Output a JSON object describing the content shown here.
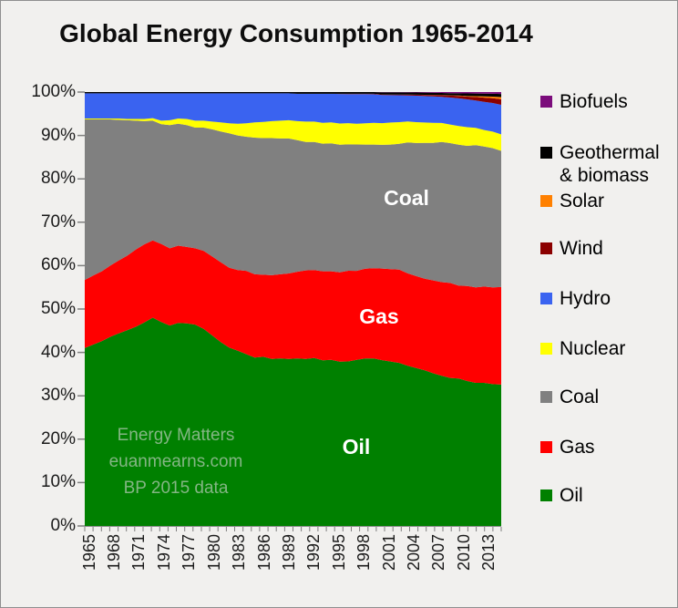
{
  "window": {
    "title": "Global Energy Consumption 1965-2014"
  },
  "palette": {
    "background": "#F1F0EE",
    "title_text": "#0d0d0d",
    "axis_text": "#1a1a1a",
    "tick_color": "#7f7f7f",
    "watermark_green": "#84B684",
    "plot_label_white": "#ffffff"
  },
  "chart_data": {
    "type": "area",
    "stacked": true,
    "unit": "percent of total",
    "title": "Global Energy Consumption 1965-2014",
    "grid": false,
    "ylim": [
      0,
      100
    ],
    "y_tick_labels": [
      "100%",
      "90%",
      "80%",
      "70%",
      "60%",
      "50%",
      "40%",
      "30%",
      "20%",
      "10%",
      "0%"
    ],
    "x_tick_labels": [
      "1965",
      "1968",
      "1971",
      "1974",
      "1977",
      "1980",
      "1983",
      "1986",
      "1989",
      "1992",
      "1995",
      "1998",
      "2001",
      "2004",
      "2007",
      "2010",
      "2013"
    ],
    "x": [
      1965,
      1966,
      1967,
      1968,
      1969,
      1970,
      1971,
      1972,
      1973,
      1974,
      1975,
      1976,
      1977,
      1978,
      1979,
      1980,
      1981,
      1982,
      1983,
      1984,
      1985,
      1986,
      1987,
      1988,
      1989,
      1990,
      1991,
      1992,
      1993,
      1994,
      1995,
      1996,
      1997,
      1998,
      1999,
      2000,
      2001,
      2002,
      2003,
      2004,
      2005,
      2006,
      2007,
      2008,
      2009,
      2010,
      2011,
      2012,
      2013,
      2014
    ],
    "series": [
      {
        "key": "oil",
        "name": "Oil",
        "color": "#008000",
        "values": [
          41.0,
          41.8,
          42.6,
          43.6,
          44.4,
          45.1,
          45.9,
          46.9,
          48.0,
          47.0,
          46.2,
          46.8,
          46.7,
          46.4,
          45.4,
          43.9,
          42.4,
          41.1,
          40.4,
          39.6,
          38.8,
          39.0,
          38.5,
          38.6,
          38.5,
          38.6,
          38.5,
          38.7,
          38.2,
          38.3,
          37.9,
          37.9,
          38.3,
          38.6,
          38.6,
          38.2,
          37.9,
          37.6,
          36.9,
          36.4,
          35.9,
          35.2,
          34.6,
          34.1,
          34.0,
          33.4,
          33.0,
          33.0,
          32.7,
          32.6
        ]
      },
      {
        "key": "gas",
        "name": "Gas",
        "color": "#FF0000",
        "values": [
          15.7,
          15.9,
          16.1,
          16.4,
          16.8,
          17.2,
          17.8,
          18.0,
          17.8,
          18.0,
          17.8,
          17.8,
          17.6,
          17.6,
          18.0,
          18.2,
          18.4,
          18.4,
          18.6,
          19.2,
          19.2,
          18.9,
          19.3,
          19.4,
          19.7,
          20.0,
          20.4,
          20.3,
          20.5,
          20.4,
          20.6,
          20.9,
          20.5,
          20.7,
          20.8,
          21.1,
          21.3,
          21.5,
          21.3,
          21.2,
          21.1,
          21.4,
          21.6,
          21.9,
          21.4,
          21.9,
          22.0,
          22.2,
          22.3,
          22.5
        ]
      },
      {
        "key": "coal",
        "name": "Coal",
        "color": "#808080",
        "values": [
          37.0,
          36.0,
          35.0,
          33.7,
          32.4,
          31.2,
          29.7,
          28.4,
          27.6,
          27.6,
          28.4,
          28.1,
          28.1,
          27.8,
          28.4,
          29.3,
          30.1,
          31.0,
          31.0,
          30.9,
          31.5,
          31.5,
          31.6,
          31.3,
          31.1,
          30.3,
          29.6,
          29.5,
          29.4,
          29.5,
          29.4,
          29.1,
          29.1,
          28.6,
          28.5,
          28.5,
          28.7,
          29.0,
          30.2,
          30.7,
          31.3,
          31.7,
          32.3,
          32.2,
          32.5,
          32.3,
          32.8,
          32.3,
          32.1,
          31.4
        ]
      },
      {
        "key": "nuclear",
        "name": "Nuclear",
        "color": "#FFFF00",
        "values": [
          0.2,
          0.2,
          0.2,
          0.2,
          0.3,
          0.3,
          0.4,
          0.5,
          0.6,
          0.8,
          1.1,
          1.2,
          1.4,
          1.6,
          1.6,
          1.8,
          2.1,
          2.3,
          2.7,
          3.1,
          3.5,
          3.7,
          3.9,
          4.1,
          4.2,
          4.4,
          4.7,
          4.7,
          4.8,
          4.8,
          4.9,
          4.9,
          4.8,
          4.9,
          5.0,
          5.0,
          5.1,
          5.0,
          4.8,
          4.8,
          4.7,
          4.6,
          4.4,
          4.3,
          4.3,
          4.3,
          4.0,
          3.8,
          3.8,
          3.8
        ]
      },
      {
        "key": "hydro",
        "name": "Hydro",
        "color": "#3A63F0",
        "values": [
          5.8,
          5.8,
          5.8,
          5.8,
          5.8,
          5.9,
          5.9,
          5.9,
          5.7,
          6.3,
          6.2,
          5.8,
          5.9,
          6.3,
          6.3,
          6.5,
          6.7,
          6.9,
          7.0,
          6.9,
          6.7,
          6.6,
          6.4,
          6.3,
          6.2,
          6.3,
          6.4,
          6.4,
          6.7,
          6.6,
          6.8,
          6.7,
          6.8,
          6.7,
          6.6,
          6.5,
          6.3,
          6.2,
          6.0,
          6.1,
          6.1,
          6.1,
          6.0,
          6.2,
          6.4,
          6.4,
          6.3,
          6.5,
          6.6,
          6.8
        ]
      },
      {
        "key": "wind",
        "name": "Wind",
        "color": "#8B0000",
        "values": [
          0,
          0,
          0,
          0,
          0,
          0,
          0,
          0,
          0,
          0,
          0,
          0,
          0,
          0,
          0,
          0,
          0,
          0,
          0,
          0,
          0,
          0,
          0,
          0,
          0,
          0,
          0,
          0,
          0,
          0,
          0.05,
          0.06,
          0.08,
          0.09,
          0.1,
          0.12,
          0.15,
          0.17,
          0.2,
          0.23,
          0.27,
          0.32,
          0.38,
          0.45,
          0.55,
          0.65,
          0.8,
          0.95,
          1.1,
          1.3
        ]
      },
      {
        "key": "solar",
        "name": "Solar",
        "color": "#FF8000",
        "values": [
          0,
          0,
          0,
          0,
          0,
          0,
          0,
          0,
          0,
          0,
          0,
          0,
          0,
          0,
          0,
          0,
          0,
          0,
          0,
          0,
          0,
          0,
          0,
          0,
          0,
          0,
          0,
          0,
          0,
          0,
          0,
          0,
          0,
          0,
          0,
          0,
          0,
          0,
          0,
          0,
          0.02,
          0.03,
          0.04,
          0.06,
          0.09,
          0.12,
          0.2,
          0.28,
          0.38,
          0.5
        ]
      },
      {
        "key": "geothermal-biomass",
        "name": "Geothermal & biomass",
        "color": "#000000",
        "values": [
          0.3,
          0.3,
          0.3,
          0.3,
          0.3,
          0.3,
          0.3,
          0.3,
          0.3,
          0.3,
          0.3,
          0.3,
          0.3,
          0.3,
          0.3,
          0.3,
          0.3,
          0.3,
          0.3,
          0.3,
          0.3,
          0.3,
          0.3,
          0.3,
          0.3,
          0.4,
          0.4,
          0.4,
          0.4,
          0.4,
          0.4,
          0.4,
          0.4,
          0.4,
          0.4,
          0.5,
          0.5,
          0.5,
          0.5,
          0.5,
          0.5,
          0.5,
          0.5,
          0.5,
          0.5,
          0.6,
          0.6,
          0.65,
          0.65,
          0.7
        ]
      },
      {
        "key": "biofuels",
        "name": "Biofuels",
        "color": "#7B0C7B",
        "values": [
          0,
          0,
          0,
          0,
          0,
          0,
          0,
          0,
          0,
          0,
          0,
          0,
          0,
          0,
          0,
          0,
          0,
          0,
          0,
          0,
          0,
          0,
          0,
          0,
          0,
          0,
          0,
          0,
          0,
          0,
          0,
          0,
          0,
          0,
          0,
          0.05,
          0.06,
          0.07,
          0.09,
          0.11,
          0.13,
          0.16,
          0.2,
          0.26,
          0.3,
          0.32,
          0.34,
          0.36,
          0.4,
          0.45
        ]
      }
    ],
    "legend": {
      "position": "right",
      "items": [
        {
          "key": "biofuels",
          "label": "Biofuels",
          "color": "#7B0C7B"
        },
        {
          "key": "geothermal-biomass",
          "label": "Geothermal & biomass",
          "color": "#000000"
        },
        {
          "key": "solar",
          "label": "Solar",
          "color": "#FF8000"
        },
        {
          "key": "wind",
          "label": "Wind",
          "color": "#8B0000"
        },
        {
          "key": "hydro",
          "label": "Hydro",
          "color": "#3A63F0"
        },
        {
          "key": "nuclear",
          "label": "Nuclear",
          "color": "#FFFF00"
        },
        {
          "key": "coal",
          "label": "Coal",
          "color": "#808080"
        },
        {
          "key": "gas",
          "label": "Gas",
          "color": "#FF0000"
        },
        {
          "key": "oil",
          "label": "Oil",
          "color": "#008000"
        }
      ]
    },
    "area_labels": [
      {
        "key": "coal",
        "text": "Coal"
      },
      {
        "key": "gas",
        "text": "Gas"
      },
      {
        "key": "oil",
        "text": "Oil"
      }
    ],
    "watermark": {
      "lines": [
        "Energy Matters",
        "euanmearns.com",
        "BP 2015 data"
      ],
      "color": "#84B684"
    }
  }
}
